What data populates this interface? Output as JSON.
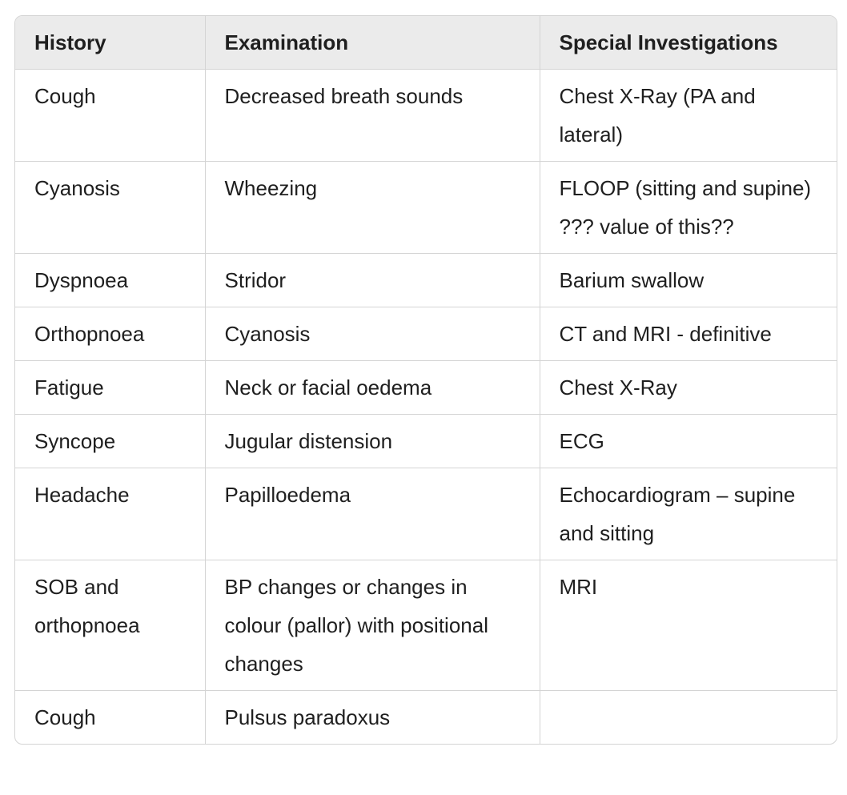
{
  "table": {
    "headers": [
      "History",
      "Examination",
      "Special Investigations"
    ],
    "rows": [
      [
        "Cough",
        "Decreased breath sounds",
        "Chest X-Ray (PA and lateral)"
      ],
      [
        "Cyanosis",
        "Wheezing",
        "FLOOP (sitting and supine) ??? value of this??"
      ],
      [
        "Dyspnoea",
        "Stridor",
        "Barium swallow"
      ],
      [
        "Orthopnoea",
        "Cyanosis",
        "CT and MRI - definitive"
      ],
      [
        "Fatigue",
        "Neck or facial oedema",
        "Chest X-Ray"
      ],
      [
        "Syncope",
        "Jugular distension",
        "ECG"
      ],
      [
        "Headache",
        "Papilloedema",
        "Echocardiogram – supine and sitting"
      ],
      [
        "SOB and orthopnoea",
        "BP changes or changes in colour (pallor) with positional changes",
        "MRI"
      ],
      [
        "Cough",
        "Pulsus paradoxus",
        ""
      ]
    ]
  }
}
